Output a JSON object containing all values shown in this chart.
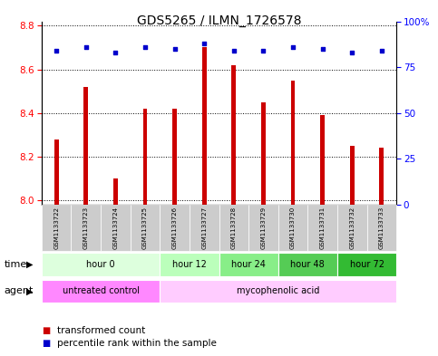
{
  "title": "GDS5265 / ILMN_1726578",
  "samples": [
    "GSM1133722",
    "GSM1133723",
    "GSM1133724",
    "GSM1133725",
    "GSM1133726",
    "GSM1133727",
    "GSM1133728",
    "GSM1133729",
    "GSM1133730",
    "GSM1133731",
    "GSM1133732",
    "GSM1133733"
  ],
  "transformed_counts": [
    8.28,
    8.52,
    8.1,
    8.42,
    8.42,
    8.7,
    8.62,
    8.45,
    8.55,
    8.39,
    8.25,
    8.24
  ],
  "percentile_ranks": [
    84,
    86,
    83,
    86,
    85,
    88,
    84,
    84,
    86,
    85,
    83,
    84
  ],
  "ylim_left": [
    7.98,
    8.82
  ],
  "ylim_right": [
    0,
    100
  ],
  "y_ticks_left": [
    8.0,
    8.2,
    8.4,
    8.6,
    8.8
  ],
  "y_ticks_right": [
    0,
    25,
    50,
    75,
    100
  ],
  "bar_color": "#cc0000",
  "dot_color": "#0000cc",
  "time_groups": [
    {
      "label": "hour 0",
      "start": 0,
      "end": 4,
      "color": "#ddffdd"
    },
    {
      "label": "hour 12",
      "start": 4,
      "end": 6,
      "color": "#bbffbb"
    },
    {
      "label": "hour 24",
      "start": 6,
      "end": 8,
      "color": "#88ee88"
    },
    {
      "label": "hour 48",
      "start": 8,
      "end": 10,
      "color": "#55cc55"
    },
    {
      "label": "hour 72",
      "start": 10,
      "end": 12,
      "color": "#33bb33"
    }
  ],
  "agent_groups": [
    {
      "label": "untreated control",
      "start": 0,
      "end": 4,
      "color": "#ff88ff"
    },
    {
      "label": "mycophenolic acid",
      "start": 4,
      "end": 12,
      "color": "#ffccff"
    }
  ],
  "sample_bg_color": "#cccccc",
  "title_fontsize": 10,
  "tick_fontsize": 7.5,
  "label_fontsize": 7,
  "legend_fontsize": 7.5
}
